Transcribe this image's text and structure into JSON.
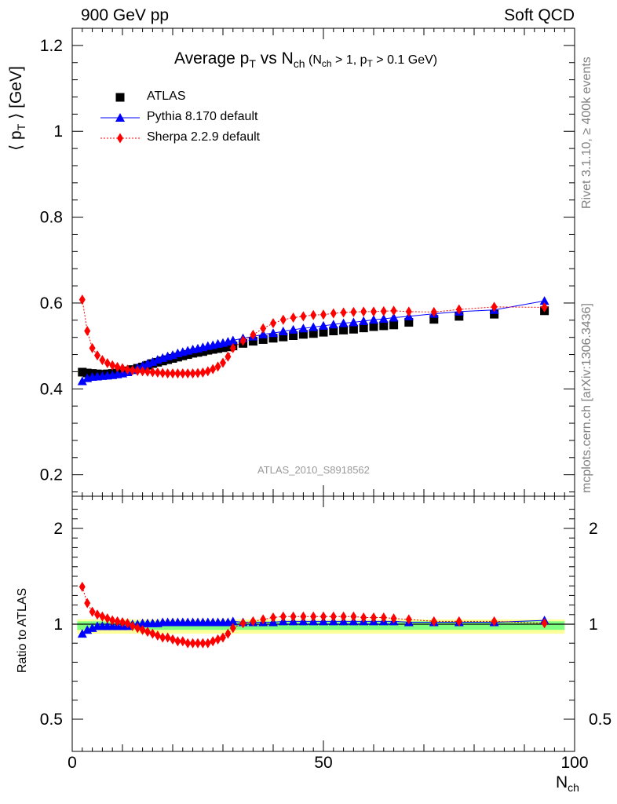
{
  "header": {
    "energy_label": "900 GeV pp",
    "process_label": "Soft QCD"
  },
  "side_labels": {
    "rivet": "Rivet 3.1.10, ≥ 400k events",
    "source": "mcplots.cern.ch [arXiv:1306.3436]"
  },
  "colors": {
    "atlas": "#000000",
    "pythia": "#0000ff",
    "sherpa": "#ff0000",
    "band_inner": "#7fff7f",
    "band_outer": "#ffff99"
  },
  "chart_data": [
    {
      "type": "scatter",
      "title": "Average p_T vs N_ch (N_ch > 1, p_T > 0.1 GeV)",
      "title_parts": {
        "main": "Average p",
        "main_sub": "T",
        "vs": " vs N",
        "vs_sub": "ch",
        "cut_open": " (N",
        "cut_sub1": "ch",
        "cut_mid": " > 1, p",
        "cut_sub2": "T",
        "cut_close": " > 0.1 GeV)"
      },
      "ylabel": "⟨ p_T ⟩ [GeV]",
      "ylabel_parts": {
        "open": "⟨ p",
        "sub": "T",
        "close": " ⟩  [GeV]"
      },
      "analysis_label": "ATLAS_2010_S8918562",
      "xlim": [
        0,
        100
      ],
      "ylim": [
        0.15,
        1.24
      ],
      "yticks": [
        0.2,
        0.4,
        0.6,
        0.8,
        1,
        1.2
      ],
      "ytick_labels": [
        "0.2",
        "0.4",
        "0.6",
        "0.8",
        "1",
        "1.2"
      ],
      "legend_position": "top-left",
      "series": [
        {
          "name": "ATLAS",
          "marker": "square",
          "x": [
            2,
            3,
            4,
            5,
            6,
            7,
            8,
            9,
            10,
            11,
            12,
            13,
            14,
            15,
            16,
            17,
            18,
            19,
            20,
            21,
            22,
            23,
            24,
            25,
            26,
            27,
            28,
            29,
            30,
            31,
            32,
            34,
            36,
            38,
            40,
            42,
            44,
            46,
            48,
            50,
            52,
            54,
            56,
            58,
            60,
            62,
            64,
            67,
            72,
            77,
            84,
            94
          ],
          "values": [
            0.439,
            0.437,
            0.436,
            0.435,
            0.434,
            0.435,
            0.436,
            0.437,
            0.439,
            0.442,
            0.445,
            0.448,
            0.451,
            0.455,
            0.459,
            0.462,
            0.465,
            0.468,
            0.471,
            0.474,
            0.477,
            0.48,
            0.483,
            0.485,
            0.487,
            0.49,
            0.492,
            0.494,
            0.496,
            0.498,
            0.5,
            0.506,
            0.511,
            0.515,
            0.518,
            0.521,
            0.524,
            0.527,
            0.529,
            0.532,
            0.535,
            0.537,
            0.539,
            0.542,
            0.545,
            0.547,
            0.549,
            0.555,
            0.562,
            0.569,
            0.574,
            0.582
          ]
        },
        {
          "name": "Pythia 8.170 default",
          "marker": "triangle",
          "x": [
            2,
            3,
            4,
            5,
            6,
            7,
            8,
            9,
            10,
            11,
            12,
            13,
            14,
            15,
            16,
            17,
            18,
            19,
            20,
            21,
            22,
            23,
            24,
            25,
            26,
            27,
            28,
            29,
            30,
            31,
            32,
            34,
            36,
            38,
            40,
            42,
            44,
            46,
            48,
            50,
            52,
            54,
            56,
            58,
            60,
            62,
            64,
            67,
            72,
            77,
            84,
            94
          ],
          "values": [
            0.418,
            0.425,
            0.428,
            0.429,
            0.43,
            0.431,
            0.432,
            0.434,
            0.436,
            0.439,
            0.444,
            0.449,
            0.454,
            0.459,
            0.463,
            0.468,
            0.472,
            0.476,
            0.479,
            0.483,
            0.486,
            0.489,
            0.492,
            0.494,
            0.497,
            0.5,
            0.502,
            0.505,
            0.507,
            0.51,
            0.513,
            0.518,
            0.522,
            0.527,
            0.53,
            0.534,
            0.538,
            0.541,
            0.544,
            0.547,
            0.55,
            0.553,
            0.555,
            0.558,
            0.561,
            0.563,
            0.566,
            0.569,
            0.575,
            0.58,
            0.584,
            0.605
          ]
        },
        {
          "name": "Sherpa 2.2.9 default",
          "marker": "diamond",
          "x": [
            2,
            3,
            4,
            5,
            6,
            7,
            8,
            9,
            10,
            11,
            12,
            13,
            14,
            15,
            16,
            17,
            18,
            19,
            20,
            21,
            22,
            23,
            24,
            25,
            26,
            27,
            28,
            29,
            30,
            31,
            32,
            34,
            36,
            38,
            40,
            42,
            44,
            46,
            48,
            50,
            52,
            54,
            56,
            58,
            60,
            62,
            64,
            67,
            72,
            77,
            84,
            94
          ],
          "values": [
            0.608,
            0.535,
            0.495,
            0.478,
            0.467,
            0.46,
            0.455,
            0.451,
            0.448,
            0.445,
            0.443,
            0.442,
            0.441,
            0.44,
            0.439,
            0.438,
            0.437,
            0.436,
            0.436,
            0.436,
            0.436,
            0.436,
            0.436,
            0.437,
            0.438,
            0.441,
            0.446,
            0.452,
            0.461,
            0.475,
            0.495,
            0.512,
            0.526,
            0.541,
            0.553,
            0.561,
            0.566,
            0.569,
            0.572,
            0.573,
            0.576,
            0.578,
            0.579,
            0.58,
            0.58,
            0.581,
            0.582,
            0.58,
            0.579,
            0.585,
            0.591,
            0.59
          ]
        }
      ]
    },
    {
      "type": "scatter",
      "ylabel": "Ratio to ATLAS",
      "xlabel": "N_ch",
      "xlabel_parts": {
        "main": "N",
        "sub": "ch"
      },
      "xlim": [
        0,
        100
      ],
      "ylim": [
        0.3,
        2.3
      ],
      "xticks": [
        0,
        50,
        100
      ],
      "xtick_labels": [
        "0",
        "50",
        "100"
      ],
      "yticks": [
        0.5,
        1,
        2
      ],
      "ytick_labels": [
        "0.5",
        "1",
        "2"
      ],
      "reference_line": 1,
      "band_inner_halfwidth": 0.03,
      "band_outer_halfwidth": 0.05,
      "series": [
        {
          "name": "Pythia 8.170 default",
          "marker": "triangle",
          "x": [
            2,
            3,
            4,
            5,
            6,
            7,
            8,
            9,
            10,
            11,
            12,
            13,
            14,
            15,
            16,
            17,
            18,
            19,
            20,
            21,
            22,
            23,
            24,
            25,
            26,
            27,
            28,
            29,
            30,
            31,
            32,
            34,
            36,
            38,
            40,
            42,
            44,
            46,
            48,
            50,
            52,
            54,
            56,
            58,
            60,
            62,
            64,
            67,
            72,
            77,
            84,
            94
          ],
          "values": [
            0.95,
            0.97,
            0.98,
            0.99,
            0.99,
            0.99,
            0.99,
            0.99,
            0.99,
            0.99,
            1.0,
            1.0,
            1.01,
            1.01,
            1.01,
            1.01,
            1.02,
            1.02,
            1.02,
            1.02,
            1.02,
            1.02,
            1.02,
            1.02,
            1.02,
            1.02,
            1.02,
            1.02,
            1.02,
            1.02,
            1.03,
            1.02,
            1.02,
            1.02,
            1.02,
            1.03,
            1.03,
            1.03,
            1.03,
            1.03,
            1.03,
            1.03,
            1.03,
            1.03,
            1.03,
            1.03,
            1.03,
            1.02,
            1.02,
            1.02,
            1.02,
            1.04
          ]
        },
        {
          "name": "Sherpa 2.2.9 default",
          "marker": "diamond",
          "x": [
            2,
            3,
            4,
            5,
            6,
            7,
            8,
            9,
            10,
            11,
            12,
            13,
            14,
            15,
            16,
            17,
            18,
            19,
            20,
            21,
            22,
            23,
            24,
            25,
            26,
            27,
            28,
            29,
            30,
            31,
            32,
            34,
            36,
            38,
            40,
            42,
            44,
            46,
            48,
            50,
            52,
            54,
            56,
            58,
            60,
            62,
            64,
            67,
            72,
            77,
            84,
            94
          ],
          "values": [
            1.39,
            1.22,
            1.13,
            1.1,
            1.08,
            1.06,
            1.04,
            1.03,
            1.02,
            1.01,
            0.99,
            0.98,
            0.97,
            0.96,
            0.95,
            0.94,
            0.93,
            0.93,
            0.92,
            0.91,
            0.91,
            0.9,
            0.9,
            0.9,
            0.9,
            0.9,
            0.91,
            0.92,
            0.93,
            0.95,
            0.98,
            1.01,
            1.03,
            1.05,
            1.07,
            1.08,
            1.08,
            1.08,
            1.08,
            1.08,
            1.08,
            1.08,
            1.08,
            1.07,
            1.07,
            1.07,
            1.06,
            1.05,
            1.03,
            1.03,
            1.03,
            1.01
          ]
        }
      ]
    }
  ]
}
